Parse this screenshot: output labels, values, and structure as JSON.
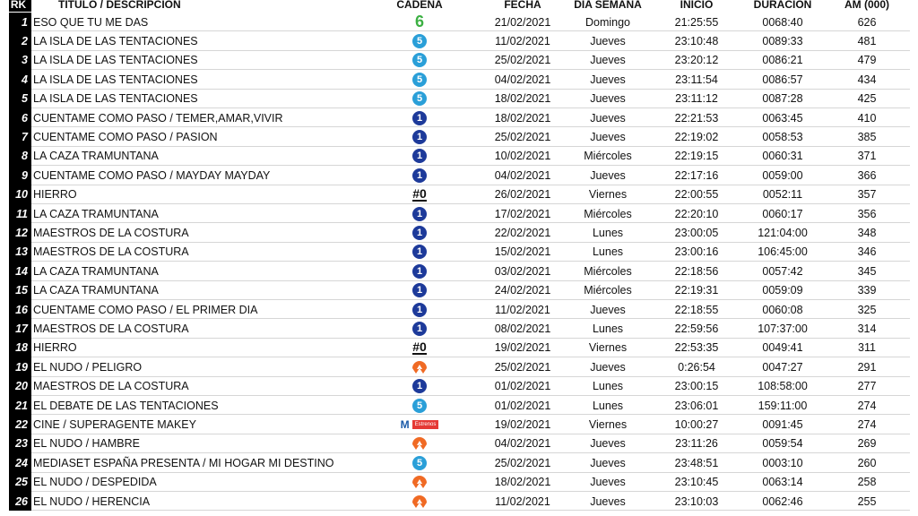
{
  "table": {
    "header": [
      "RK",
      "TITULO / DESCRIPCION",
      "CADENA",
      "FECHA",
      "DIA SEMANA",
      "INICIO",
      "DURACION",
      "AM (000)"
    ],
    "rows": [
      [
        1,
        "ESO QUE TU ME DAS",
        {
          "logo": "glyph",
          "text": "6",
          "color": "#3cb043"
        },
        "21/02/2021",
        "Domingo",
        "21:25:55",
        "0068:40",
        626
      ],
      [
        2,
        "LA ISLA DE LAS TENTACIONES",
        {
          "logo": "circle",
          "text": "5",
          "color": "#2a9fd8"
        },
        "11/02/2021",
        "Jueves",
        "23:10:48",
        "0089:33",
        481
      ],
      [
        3,
        "LA ISLA DE LAS TENTACIONES",
        {
          "logo": "circle",
          "text": "5",
          "color": "#2a9fd8"
        },
        "25/02/2021",
        "Jueves",
        "23:20:12",
        "0086:21",
        479
      ],
      [
        4,
        "LA ISLA DE LAS TENTACIONES",
        {
          "logo": "circle",
          "text": "5",
          "color": "#2a9fd8"
        },
        "04/02/2021",
        "Jueves",
        "23:11:54",
        "0086:57",
        434
      ],
      [
        5,
        "LA ISLA DE LAS TENTACIONES",
        {
          "logo": "circle",
          "text": "5",
          "color": "#2a9fd8"
        },
        "18/02/2021",
        "Jueves",
        "23:11:12",
        "0087:28",
        425
      ],
      [
        6,
        "CUENTAME COMO PASO / TEMER,AMAR,VIVIR",
        {
          "logo": "circle",
          "text": "1",
          "color": "#1d3a9a"
        },
        "18/02/2021",
        "Jueves",
        "22:21:53",
        "0063:45",
        410
      ],
      [
        7,
        "CUENTAME COMO PASO / PASION",
        {
          "logo": "circle",
          "text": "1",
          "color": "#1d3a9a"
        },
        "25/02/2021",
        "Jueves",
        "22:19:02",
        "0058:53",
        385
      ],
      [
        8,
        "LA CAZA TRAMUNTANA",
        {
          "logo": "circle",
          "text": "1",
          "color": "#1d3a9a"
        },
        "10/02/2021",
        "Miércoles",
        "22:19:15",
        "0060:31",
        371
      ],
      [
        9,
        "CUENTAME COMO PASO / MAYDAY MAYDAY",
        {
          "logo": "circle",
          "text": "1",
          "color": "#1d3a9a"
        },
        "04/02/2021",
        "Jueves",
        "22:17:16",
        "0059:00",
        366
      ],
      [
        10,
        "HIERRO",
        {
          "logo": "underline",
          "text": "#0",
          "color": "#111111"
        },
        "26/02/2021",
        "Viernes",
        "22:00:55",
        "0052:11",
        357
      ],
      [
        11,
        "LA CAZA TRAMUNTANA",
        {
          "logo": "circle",
          "text": "1",
          "color": "#1d3a9a"
        },
        "17/02/2021",
        "Miércoles",
        "22:20:10",
        "0060:17",
        356
      ],
      [
        12,
        "MAESTROS DE LA COSTURA",
        {
          "logo": "circle",
          "text": "1",
          "color": "#1d3a9a"
        },
        "22/02/2021",
        "Lunes",
        "23:00:05",
        "121:04:00",
        348
      ],
      [
        13,
        "MAESTROS DE LA COSTURA",
        {
          "logo": "circle",
          "text": "1",
          "color": "#1d3a9a"
        },
        "15/02/2021",
        "Lunes",
        "23:00:16",
        "106:45:00",
        346
      ],
      [
        14,
        "LA CAZA TRAMUNTANA",
        {
          "logo": "circle",
          "text": "1",
          "color": "#1d3a9a"
        },
        "03/02/2021",
        "Miércoles",
        "22:18:56",
        "0057:42",
        345
      ],
      [
        15,
        "LA CAZA TRAMUNTANA",
        {
          "logo": "circle",
          "text": "1",
          "color": "#1d3a9a"
        },
        "24/02/2021",
        "Miércoles",
        "22:19:31",
        "0059:09",
        339
      ],
      [
        16,
        "CUENTAME COMO PASO / EL PRIMER DIA",
        {
          "logo": "circle",
          "text": "1",
          "color": "#1d3a9a"
        },
        "11/02/2021",
        "Jueves",
        "22:18:55",
        "0060:08",
        325
      ],
      [
        17,
        "MAESTROS DE LA COSTURA",
        {
          "logo": "circle",
          "text": "1",
          "color": "#1d3a9a"
        },
        "08/02/2021",
        "Lunes",
        "22:59:56",
        "107:37:00",
        314
      ],
      [
        18,
        "HIERRO",
        {
          "logo": "underline",
          "text": "#0",
          "color": "#111111"
        },
        "19/02/2021",
        "Viernes",
        "22:53:35",
        "0049:41",
        311
      ],
      [
        19,
        "EL NUDO / PELIGRO",
        {
          "logo": "a3",
          "color": "#f06a24"
        },
        "25/02/2021",
        "Jueves",
        "0:26:54",
        "0047:27",
        291
      ],
      [
        20,
        "MAESTROS DE LA COSTURA",
        {
          "logo": "circle",
          "text": "1",
          "color": "#1d3a9a"
        },
        "01/02/2021",
        "Lunes",
        "23:00:15",
        "108:58:00",
        277
      ],
      [
        21,
        "EL DEBATE DE LAS TENTACIONES",
        {
          "logo": "circle",
          "text": "5",
          "color": "#2a9fd8"
        },
        "01/02/2021",
        "Lunes",
        "23:06:01",
        "159:11:00",
        274
      ],
      [
        22,
        "CINE / SUPERAGENTE MAKEY",
        {
          "logo": "badge",
          "text": "M",
          "badge": "Estrenos",
          "color": "#1a5aa8"
        },
        "19/02/2021",
        "Viernes",
        "10:00:27",
        "0091:45",
        274
      ],
      [
        23,
        "EL NUDO / HAMBRE",
        {
          "logo": "a3",
          "color": "#f06a24"
        },
        "04/02/2021",
        "Jueves",
        "23:11:26",
        "0059:54",
        269
      ],
      [
        24,
        "MEDIASET ESPAÑA PRESENTA / MI HOGAR MI DESTINO",
        {
          "logo": "circle",
          "text": "5",
          "color": "#2a9fd8"
        },
        "25/02/2021",
        "Jueves",
        "23:48:51",
        "0003:10",
        260
      ],
      [
        25,
        "EL NUDO / DESPEDIDA",
        {
          "logo": "a3",
          "color": "#f06a24"
        },
        "18/02/2021",
        "Jueves",
        "23:10:45",
        "0063:14",
        258
      ],
      [
        26,
        "EL NUDO / HERENCIA",
        {
          "logo": "a3",
          "color": "#f06a24"
        },
        "11/02/2021",
        "Jueves",
        "23:10:03",
        "0062:46",
        255
      ]
    ]
  }
}
